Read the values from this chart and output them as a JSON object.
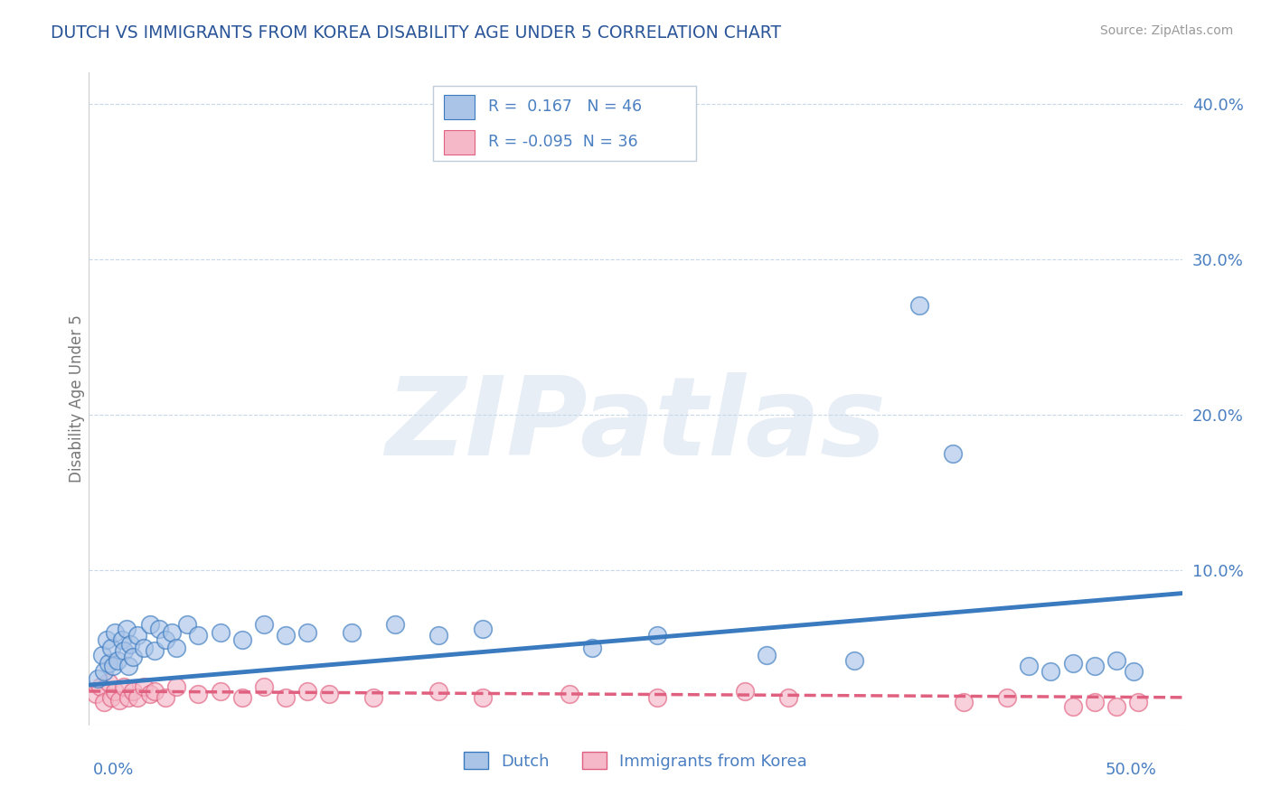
{
  "title": "DUTCH VS IMMIGRANTS FROM KOREA DISABILITY AGE UNDER 5 CORRELATION CHART",
  "source": "Source: ZipAtlas.com",
  "ylabel": "Disability Age Under 5",
  "watermark": "ZIPatlas",
  "xlim": [
    0.0,
    0.5
  ],
  "ylim": [
    0.0,
    0.42
  ],
  "dutch_R": 0.167,
  "dutch_N": 46,
  "korea_R": -0.095,
  "korea_N": 36,
  "dutch_color": "#aac4e8",
  "dutch_line_color": "#3a7abf",
  "korea_color": "#f5b8c8",
  "korea_line_color": "#e06080",
  "legend_text_color": "#4a7fc1",
  "title_color": "#2a5598",
  "source_color": "#999999",
  "background_color": "#ffffff",
  "grid_color": "#c8d8e8",
  "dutch_x": [
    0.004,
    0.006,
    0.007,
    0.008,
    0.009,
    0.01,
    0.011,
    0.012,
    0.013,
    0.015,
    0.016,
    0.017,
    0.018,
    0.019,
    0.02,
    0.022,
    0.025,
    0.028,
    0.03,
    0.032,
    0.035,
    0.038,
    0.04,
    0.045,
    0.05,
    0.06,
    0.07,
    0.08,
    0.09,
    0.1,
    0.12,
    0.14,
    0.16,
    0.18,
    0.23,
    0.26,
    0.31,
    0.35,
    0.38,
    0.395,
    0.43,
    0.44,
    0.45,
    0.46,
    0.47,
    0.478
  ],
  "dutch_y": [
    0.03,
    0.045,
    0.035,
    0.055,
    0.04,
    0.05,
    0.038,
    0.06,
    0.042,
    0.055,
    0.048,
    0.062,
    0.038,
    0.052,
    0.044,
    0.058,
    0.05,
    0.065,
    0.048,
    0.062,
    0.055,
    0.06,
    0.05,
    0.065,
    0.058,
    0.06,
    0.055,
    0.065,
    0.058,
    0.06,
    0.06,
    0.065,
    0.058,
    0.062,
    0.05,
    0.058,
    0.045,
    0.042,
    0.27,
    0.175,
    0.038,
    0.035,
    0.04,
    0.038,
    0.042,
    0.035
  ],
  "korea_x": [
    0.003,
    0.005,
    0.007,
    0.009,
    0.01,
    0.012,
    0.014,
    0.016,
    0.018,
    0.02,
    0.022,
    0.025,
    0.028,
    0.03,
    0.035,
    0.04,
    0.05,
    0.06,
    0.07,
    0.08,
    0.09,
    0.1,
    0.11,
    0.13,
    0.16,
    0.18,
    0.22,
    0.26,
    0.3,
    0.32,
    0.4,
    0.42,
    0.45,
    0.46,
    0.47,
    0.48
  ],
  "korea_y": [
    0.02,
    0.025,
    0.015,
    0.028,
    0.018,
    0.022,
    0.016,
    0.025,
    0.018,
    0.022,
    0.018,
    0.025,
    0.02,
    0.022,
    0.018,
    0.025,
    0.02,
    0.022,
    0.018,
    0.025,
    0.018,
    0.022,
    0.02,
    0.018,
    0.022,
    0.018,
    0.02,
    0.018,
    0.022,
    0.018,
    0.015,
    0.018,
    0.012,
    0.015,
    0.012,
    0.015
  ]
}
